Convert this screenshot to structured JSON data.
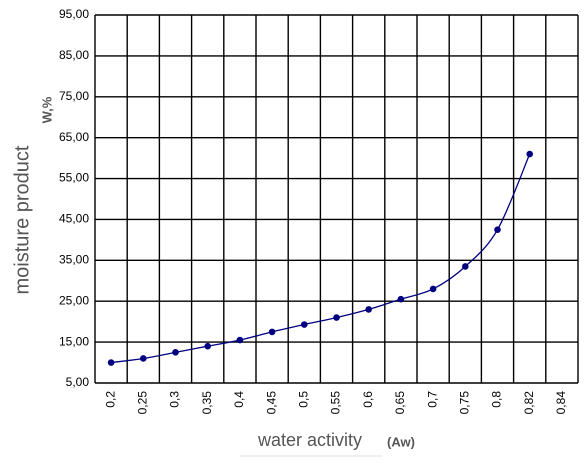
{
  "chart_data": {
    "type": "line",
    "x_label": "water activity",
    "x_unit": "(Aw)",
    "y_label": "moisture product",
    "y_unit": "W,%",
    "categories": [
      "0,2",
      "0,25",
      "0,3",
      "0,35",
      "0,4",
      "0,45",
      "0,5",
      "0,55",
      "0,6",
      "0,65",
      "0,7",
      "0,75",
      "0,8",
      "0,82",
      "0,84"
    ],
    "series": [
      {
        "name": "moisture",
        "color": "#000080",
        "values": [
          10,
          11,
          12.5,
          14,
          15.5,
          17.5,
          19.3,
          21,
          23,
          25.5,
          28,
          33.5,
          42.5,
          61,
          null
        ]
      }
    ],
    "ylim": [
      5,
      95
    ],
    "yticks": [
      {
        "value": 5,
        "label": "5,00"
      },
      {
        "value": 15,
        "label": "15,00"
      },
      {
        "value": 25,
        "label": "25,00"
      },
      {
        "value": 35,
        "label": "35,00"
      },
      {
        "value": 45,
        "label": "45,00"
      },
      {
        "value": 55,
        "label": "55,00"
      },
      {
        "value": 65,
        "label": "65,00"
      },
      {
        "value": 75,
        "label": "75,00"
      },
      {
        "value": 85,
        "label": "85,00"
      },
      {
        "value": 95,
        "label": "95,00"
      }
    ],
    "grid": true,
    "smooth": true
  }
}
